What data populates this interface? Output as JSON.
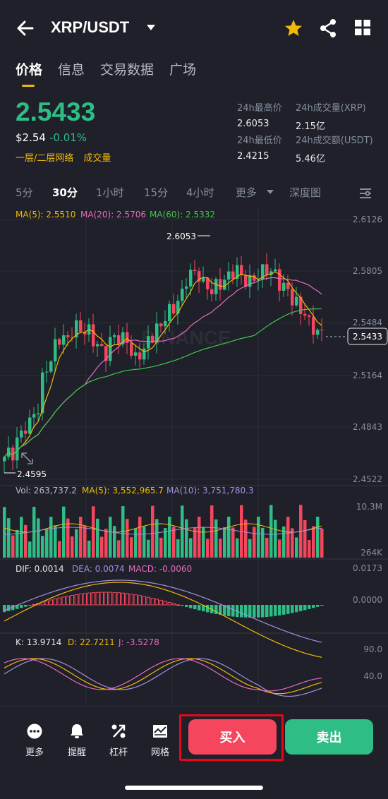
{
  "header": {
    "pair": "XRP/USDT"
  },
  "tabs": [
    "价格",
    "信息",
    "交易数据",
    "广场"
  ],
  "price": {
    "last": "2.5433",
    "usd": "$2.54",
    "change": "-0.01%",
    "links": [
      "一层/二层网络",
      "成交量"
    ]
  },
  "stats": {
    "high_label": "24h最高价",
    "high": "2.6053",
    "vol_label": "24h成交量(XRP)",
    "vol": "2.15亿",
    "low_label": "24h最低价",
    "low": "2.4215",
    "amt_label": "24h成交额(USDT)",
    "amt": "5.46亿"
  },
  "intervals": [
    "5分",
    "30分",
    "1小时",
    "15分",
    "4小时",
    "更多",
    "深度图"
  ],
  "chart_labels": {
    "ma5": "MA(5): 2.5510",
    "ma20": "MA(20): 2.5706",
    "ma60": "MA(60): 2.5332",
    "price_axis": [
      "2.6126",
      "2.5805",
      "2.5484",
      "2.5164",
      "2.4843",
      "2.4522"
    ],
    "hi_mark": "2.6053",
    "lo_mark": "2.4595",
    "current_tag": "2.5433",
    "watermark": "BINANCE",
    "vol": "Vol: 263,737.2",
    "vol_ma5": "MA(5): 3,552,965.7",
    "vol_ma10": "MA(10): 3,751,780.3",
    "vol_axis": [
      "10.3M",
      "264K"
    ],
    "dif": "DIF: 0.0014",
    "dea": "DEA: 0.0074",
    "macd": "MACD: -0.0060",
    "macd_axis": [
      "0.0173",
      "0.0000"
    ],
    "k": "K: 13.9714",
    "d": "D: 22.7211",
    "j": "J: -3.5278",
    "kdj_axis": [
      "90.0",
      "40.0"
    ]
  },
  "colors": {
    "up": "#2ebd85",
    "down": "#f6465d",
    "ma5": "#f0b90b",
    "ma20": "#e86bc3",
    "ma60": "#3ec84a",
    "accent": "#f0b90b"
  },
  "bottom": {
    "more": "更多",
    "alert": "提醒",
    "leverage": "杠杆",
    "grid": "网格",
    "buy": "买入",
    "sell": "卖出"
  }
}
